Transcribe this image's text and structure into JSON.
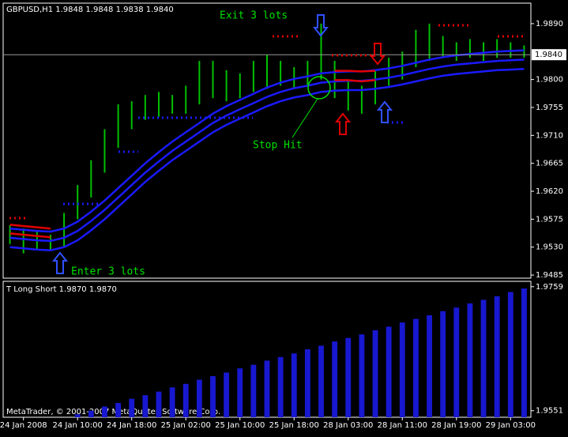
{
  "chart_data": [
    {
      "type": "ohlc",
      "title": "GBPUSD,H1 1.9848 1.9848 1.9838 1.9840",
      "annotations": [
        "Exit 3 lots",
        "Enter 3 lots",
        "Stop Hit"
      ],
      "categories": [
        null,
        "24 Jan 2008",
        null,
        null,
        null,
        "24 Jan 10:00",
        null,
        null,
        null,
        "24 Jan 18:00",
        null,
        null,
        null,
        "25 Jan 02:00",
        null,
        null,
        null,
        "25 Jan 10:00",
        null,
        null,
        null,
        "25 Jan 18:00",
        null,
        null,
        null,
        "28 Jan 03:00",
        null,
        null,
        null,
        "28 Jan 11:00",
        null,
        null,
        null,
        "28 Jan 19:00",
        null,
        null,
        null,
        "29 Jan 03:00",
        null
      ],
      "high": [
        1.9565,
        1.956,
        1.9555,
        1.955,
        1.9585,
        1.963,
        1.967,
        1.972,
        1.976,
        1.9765,
        1.9775,
        1.978,
        1.9775,
        1.979,
        1.983,
        1.983,
        1.9815,
        1.981,
        1.983,
        1.984,
        1.983,
        1.982,
        1.983,
        1.989,
        1.983,
        1.98,
        1.979,
        1.9815,
        1.9835,
        1.9845,
        1.988,
        1.989,
        1.987,
        1.986,
        1.9865,
        1.986,
        1.9865,
        1.986,
        1.9855
      ],
      "low": [
        1.9535,
        1.952,
        1.9525,
        1.9525,
        1.953,
        1.9575,
        1.961,
        1.965,
        1.969,
        1.972,
        1.9735,
        1.974,
        1.9745,
        1.9745,
        1.976,
        1.977,
        1.9765,
        1.977,
        1.978,
        1.9785,
        1.979,
        1.9785,
        1.979,
        1.98,
        1.977,
        1.975,
        1.9745,
        1.976,
        1.979,
        1.98,
        1.982,
        1.983,
        1.9835,
        1.983,
        1.9835,
        1.983,
        1.9835,
        1.9835,
        1.9835
      ],
      "bar_color": "#00c000",
      "series": [
        {
          "color": "#1a1aff",
          "values": [
            1.956,
            1.9558,
            1.9556,
            1.9555,
            1.956,
            1.9571,
            1.9587,
            1.9605,
            1.9625,
            1.9645,
            1.9665,
            1.9683,
            1.97,
            1.9715,
            1.973,
            1.9745,
            1.9757,
            1.9767,
            1.9777,
            1.9787,
            1.9795,
            1.9801,
            1.9805,
            1.981,
            1.9812,
            1.9813,
            1.9813,
            1.9815,
            1.9818,
            1.9822,
            1.9827,
            1.9832,
            1.9836,
            1.9839,
            1.9841,
            1.9843,
            1.9845,
            1.9846,
            1.9847
          ]
        },
        {
          "color": "#1a1aff",
          "values": [
            1.9545,
            1.9543,
            1.9541,
            1.954,
            1.9545,
            1.9556,
            1.9572,
            1.959,
            1.961,
            1.963,
            1.965,
            1.9668,
            1.9685,
            1.97,
            1.9715,
            1.973,
            1.9742,
            1.9752,
            1.9762,
            1.9772,
            1.978,
            1.9786,
            1.979,
            1.9795,
            1.9797,
            1.9798,
            1.9798,
            1.98,
            1.9803,
            1.9807,
            1.9812,
            1.9817,
            1.9821,
            1.9824,
            1.9826,
            1.9828,
            1.983,
            1.9831,
            1.9832
          ]
        },
        {
          "color": "#1a1aff",
          "values": [
            1.953,
            1.9528,
            1.9526,
            1.9525,
            1.953,
            1.9541,
            1.9557,
            1.9575,
            1.9595,
            1.9615,
            1.9635,
            1.9653,
            1.967,
            1.9685,
            1.97,
            1.9715,
            1.9727,
            1.9737,
            1.9747,
            1.9757,
            1.9765,
            1.9771,
            1.9775,
            1.978,
            1.9782,
            1.9783,
            1.9783,
            1.9785,
            1.9788,
            1.9792,
            1.9797,
            1.9802,
            1.9806,
            1.9809,
            1.9811,
            1.9813,
            1.9815,
            1.9816,
            1.9817
          ]
        },
        {
          "color": "#e00000",
          "values": [
            1.9566,
            1.9564,
            1.9562,
            1.956,
            null,
            null,
            null,
            null,
            null,
            null,
            null,
            null,
            null,
            null,
            null,
            null,
            null,
            null,
            null,
            null,
            null,
            null,
            null,
            null,
            1.9814,
            1.9814,
            1.9813,
            1.9814,
            null,
            null,
            null,
            null,
            null,
            null,
            null,
            null,
            null,
            null,
            null
          ]
        },
        {
          "color": "#e00000",
          "values": [
            1.9552,
            1.955,
            1.9548,
            1.9546,
            null,
            null,
            null,
            null,
            null,
            null,
            null,
            null,
            null,
            null,
            null,
            null,
            null,
            null,
            null,
            null,
            null,
            null,
            null,
            null,
            1.9799,
            1.9799,
            1.9797,
            1.9799,
            null,
            null,
            null,
            null,
            null,
            null,
            null,
            null,
            null,
            null,
            null
          ]
        }
      ],
      "current_price": {
        "value": 1.984,
        "label": "1.9840"
      },
      "ylim": [
        1.948,
        1.9923
      ],
      "yticks": [
        {
          "value": 1.9485,
          "label": "1.9485"
        },
        {
          "value": 1.953,
          "label": "1.9530"
        },
        {
          "value": 1.9575,
          "label": "1.9575"
        },
        {
          "value": 1.962,
          "label": "1.9620"
        },
        {
          "value": 1.9665,
          "label": "1.9665"
        },
        {
          "value": 1.971,
          "label": "1.9710"
        },
        {
          "value": 1.9755,
          "label": "1.9755"
        },
        {
          "value": 1.98,
          "label": "1.9800"
        },
        {
          "value": 1.989,
          "label": "1.9890"
        }
      ]
    },
    {
      "type": "bar",
      "title": "T Long Short 1.9870 1.9870",
      "footer": "MetaTrader, © 2001-2007 MetaQuotes Software Corp.",
      "color": "#1818d0",
      "values": [
        null,
        null,
        null,
        null,
        null,
        1.9545,
        1.9551,
        1.9558,
        1.9564,
        1.9571,
        1.9577,
        1.9583,
        1.959,
        1.9596,
        1.9603,
        1.9609,
        1.9615,
        1.9622,
        1.9628,
        1.9635,
        1.9641,
        1.9647,
        1.9654,
        1.966,
        1.9667,
        1.9673,
        1.9679,
        1.9686,
        1.9692,
        1.9699,
        1.9705,
        1.9711,
        1.9718,
        1.9724,
        1.9731,
        1.9737,
        1.9743,
        1.975,
        1.9756
      ],
      "ylim": [
        1.954,
        1.9768
      ],
      "yticks": [
        {
          "value": 1.9551,
          "label": "1.9551"
        },
        {
          "value": 1.9759,
          "label": "1.9759"
        }
      ]
    }
  ]
}
